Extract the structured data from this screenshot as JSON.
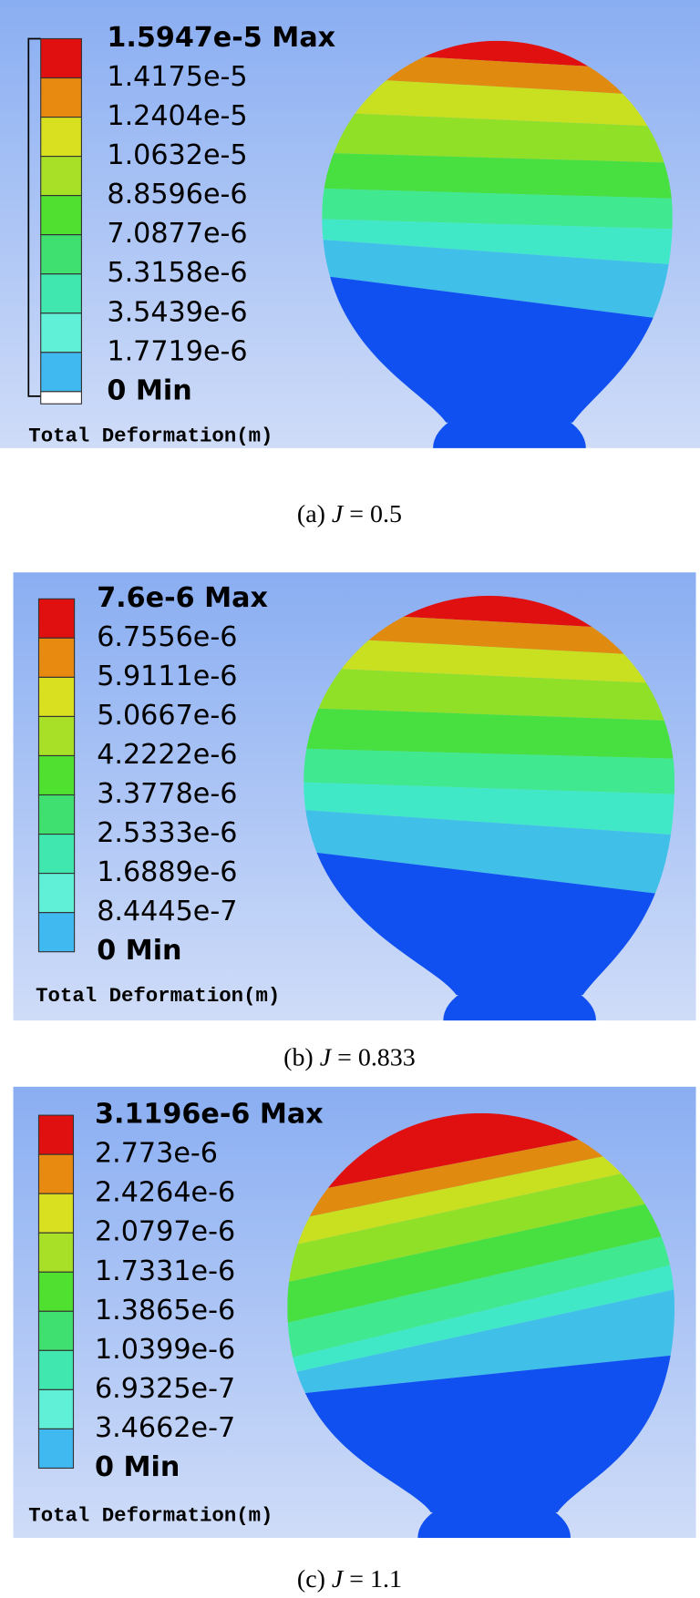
{
  "panels": [
    {
      "legend": {
        "labels": [
          "1.5947e-5 Max",
          "1.4175e-5",
          "1.2404e-5",
          "1.0632e-5",
          "8.8596e-6",
          "7.0877e-6",
          "5.3158e-6",
          "3.5439e-6",
          "1.7719e-6",
          "0 Min"
        ],
        "title": "Total Deformation(m)"
      },
      "caption": {
        "label": "(a)",
        "symbol": "J",
        "value": "= 0.5"
      }
    },
    {
      "legend": {
        "labels": [
          "7.6e-6 Max",
          "6.7556e-6",
          "5.9111e-6",
          "5.0667e-6",
          "4.2222e-6",
          "3.3778e-6",
          "2.5333e-6",
          "1.6889e-6",
          "8.4445e-7",
          "0 Min"
        ],
        "title": "Total Deformation(m)"
      },
      "caption": {
        "label": "(b)",
        "symbol": "J",
        "value": "= 0.833"
      }
    },
    {
      "legend": {
        "labels": [
          "3.1196e-6 Max",
          "2.773e-6",
          "2.4264e-6",
          "2.0797e-6",
          "1.7331e-6",
          "1.3865e-6",
          "1.0399e-6",
          "6.9325e-7",
          "3.4662e-7",
          "0 Min"
        ],
        "title": "Total Deformation(m)"
      },
      "caption": {
        "label": "(c)",
        "symbol": "J",
        "value": "= 1.1"
      }
    }
  ]
}
